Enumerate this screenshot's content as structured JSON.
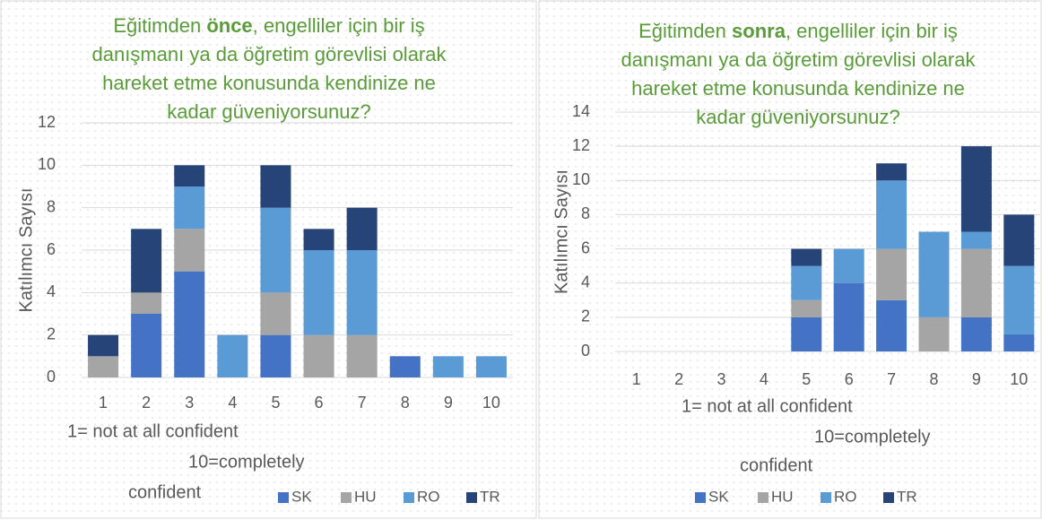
{
  "chart_data": [
    {
      "type": "bar",
      "stacked": true,
      "title": [
        [
          "Eğitimden ",
          "önce",
          ", engelliler için bir iş"
        ],
        [
          "danışmanı ya da öğretim görevlisi olarak"
        ],
        [
          "hareket etme konusunda kendinize ne"
        ],
        [
          "kadar güveniyorsunuz?"
        ]
      ],
      "ylabel": "Katılımcı Sayısı",
      "xlabel": [
        "1= not at all confident",
        "10=completely",
        "confident"
      ],
      "categories": [
        "1",
        "2",
        "3",
        "4",
        "5",
        "6",
        "7",
        "8",
        "9",
        "10"
      ],
      "series": [
        {
          "name": "SK",
          "color": "#4472c4",
          "values": [
            0,
            3,
            5,
            0,
            2,
            0,
            0,
            1,
            0,
            0
          ]
        },
        {
          "name": "HU",
          "color": "#a5a5a5",
          "values": [
            1,
            1,
            2,
            0,
            2,
            2,
            2,
            0,
            0,
            0
          ]
        },
        {
          "name": "RO",
          "color": "#5b9bd5",
          "values": [
            0,
            0,
            2,
            2,
            4,
            4,
            4,
            0,
            1,
            1
          ]
        },
        {
          "name": "TR",
          "color": "#264478",
          "values": [
            1,
            3,
            1,
            0,
            2,
            1,
            2,
            0,
            0,
            0
          ]
        }
      ],
      "ylim": [
        0,
        12
      ],
      "yticks": [
        0,
        2,
        4,
        6,
        8,
        10,
        12
      ],
      "grid": true,
      "legend": "bottom"
    },
    {
      "type": "bar",
      "stacked": true,
      "title": [
        [
          "Eğitimden ",
          "sonra",
          ", engelliler için bir iş"
        ],
        [
          "danışmanı ya da öğretim görevlisi olarak"
        ],
        [
          "hareket etme konusunda kendinize ne"
        ],
        [
          "kadar güveniyorsunuz?"
        ]
      ],
      "ylabel": "Katılımcı Sayısı",
      "xlabel": [
        "1= not at all confident",
        "10=completely",
        "confident"
      ],
      "categories": [
        "1",
        "2",
        "3",
        "4",
        "5",
        "6",
        "7",
        "8",
        "9",
        "10"
      ],
      "series": [
        {
          "name": "SK",
          "color": "#4472c4",
          "values": [
            0,
            0,
            0,
            0,
            2,
            4,
            3,
            0,
            2,
            1
          ]
        },
        {
          "name": "HU",
          "color": "#a5a5a5",
          "values": [
            0,
            0,
            0,
            0,
            1,
            0,
            3,
            2,
            4,
            0
          ]
        },
        {
          "name": "RO",
          "color": "#5b9bd5",
          "values": [
            0,
            0,
            0,
            0,
            2,
            2,
            4,
            5,
            1,
            4
          ]
        },
        {
          "name": "TR",
          "color": "#264478",
          "values": [
            0,
            0,
            0,
            0,
            1,
            0,
            1,
            0,
            5,
            3
          ]
        }
      ],
      "ylim": [
        0,
        14
      ],
      "yticks": [
        0,
        2,
        4,
        6,
        8,
        10,
        12,
        14
      ],
      "grid": true,
      "legend": "bottom"
    }
  ]
}
